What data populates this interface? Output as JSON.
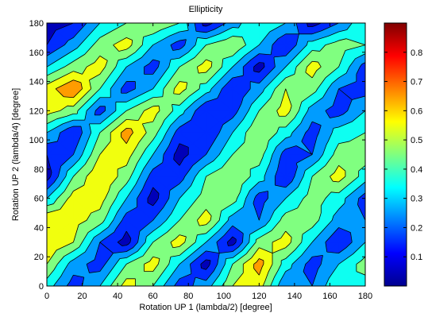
{
  "chart_data": {
    "type": "heatmap",
    "subtype": "filled-contour",
    "title": "Ellipticity",
    "xlabel": "Rotation UP 1 (lambda/2) [degree]",
    "ylabel": "Rotation UP 2 (lambda/4) [degree]",
    "xlim": [
      0,
      180
    ],
    "ylim": [
      0,
      180
    ],
    "x_ticks": [
      "0",
      "20",
      "40",
      "60",
      "80",
      "100",
      "120",
      "140",
      "160",
      "180"
    ],
    "y_ticks": [
      "0",
      "20",
      "40",
      "60",
      "80",
      "100",
      "120",
      "140",
      "160",
      "180"
    ],
    "colorbar": {
      "colormap": "jet",
      "range": [
        0.0,
        0.9
      ],
      "ticks": [
        "0.1",
        "0.2",
        "0.3",
        "0.4",
        "0.5",
        "0.6",
        "0.7",
        "0.8"
      ]
    },
    "grid_step": 15,
    "z": [
      [
        0.35,
        0.15,
        0.3,
        0.55,
        0.4,
        0.15,
        0.25,
        0.5,
        0.55,
        0.2,
        0.2,
        0.4,
        0.35
      ],
      [
        0.5,
        0.25,
        0.15,
        0.4,
        0.55,
        0.3,
        0.05,
        0.4,
        0.65,
        0.35,
        0.15,
        0.3,
        0.45
      ],
      [
        0.6,
        0.5,
        0.2,
        0.05,
        0.4,
        0.55,
        0.3,
        0.05,
        0.45,
        0.55,
        0.3,
        0.1,
        0.3
      ],
      [
        0.6,
        0.55,
        0.45,
        0.15,
        0.2,
        0.4,
        0.55,
        0.25,
        0.2,
        0.45,
        0.45,
        0.25,
        0.2
      ],
      [
        0.3,
        0.55,
        0.55,
        0.3,
        0.05,
        0.3,
        0.45,
        0.45,
        0.15,
        0.3,
        0.45,
        0.35,
        0.15
      ],
      [
        0.05,
        0.4,
        0.6,
        0.45,
        0.15,
        0.15,
        0.4,
        0.5,
        0.35,
        0.1,
        0.4,
        0.55,
        0.35
      ],
      [
        0.1,
        0.2,
        0.5,
        0.55,
        0.3,
        0.05,
        0.2,
        0.4,
        0.45,
        0.15,
        0.2,
        0.45,
        0.45
      ],
      [
        0.3,
        0.1,
        0.4,
        0.65,
        0.45,
        0.15,
        0.1,
        0.3,
        0.5,
        0.35,
        0.15,
        0.35,
        0.4
      ],
      [
        0.55,
        0.45,
        0.15,
        0.4,
        0.55,
        0.35,
        0.1,
        0.15,
        0.4,
        0.55,
        0.25,
        0.15,
        0.3
      ],
      [
        0.55,
        0.7,
        0.4,
        0.15,
        0.3,
        0.55,
        0.35,
        0.1,
        0.25,
        0.5,
        0.45,
        0.2,
        0.15
      ],
      [
        0.3,
        0.45,
        0.55,
        0.3,
        0.15,
        0.4,
        0.55,
        0.3,
        0.05,
        0.3,
        0.55,
        0.4,
        0.15
      ],
      [
        0.1,
        0.25,
        0.45,
        0.55,
        0.3,
        0.15,
        0.4,
        0.5,
        0.3,
        0.1,
        0.35,
        0.45,
        0.4
      ],
      [
        0.05,
        0.1,
        0.3,
        0.4,
        0.5,
        0.4,
        0.05,
        0.25,
        0.4,
        0.3,
        0.05,
        0.2,
        0.4
      ]
    ]
  }
}
